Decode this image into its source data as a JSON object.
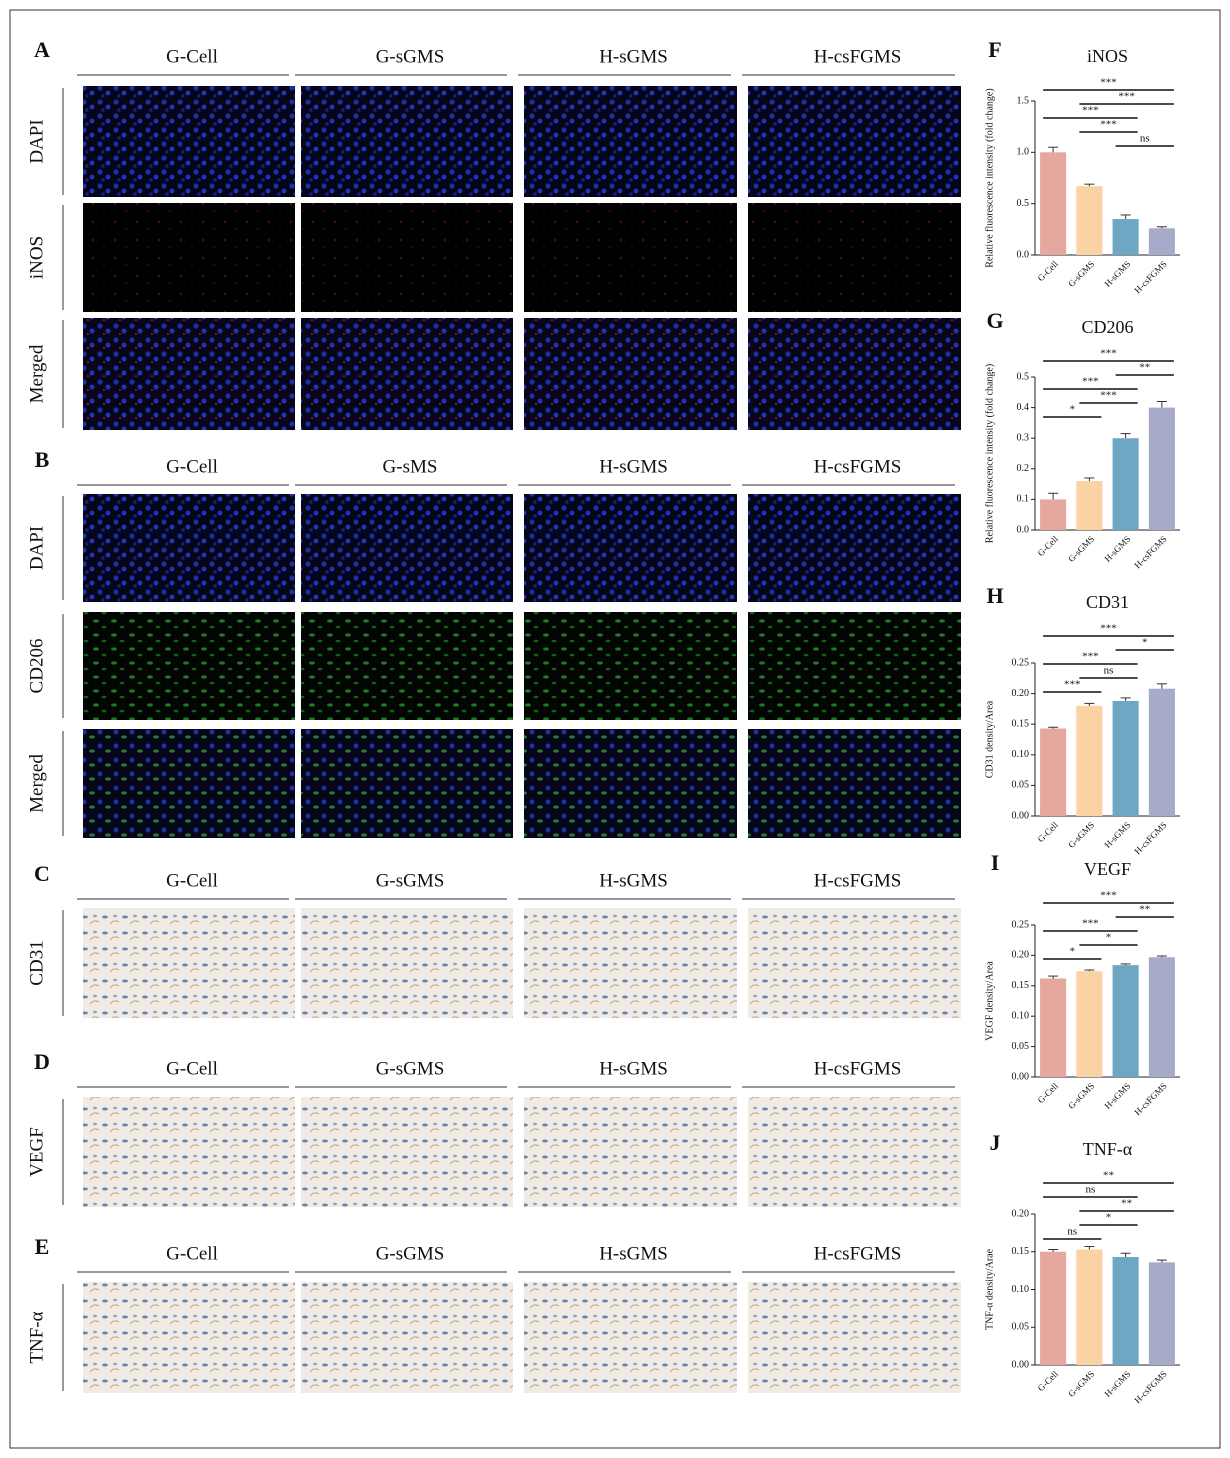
{
  "image_panels": [
    {
      "label": "A",
      "columns": [
        "G-Cell",
        "G-sGMS",
        "H-sGMS",
        "H-csFGMS"
      ],
      "rows": [
        "DAPI",
        "iNOS",
        "Merged"
      ]
    },
    {
      "label": "B",
      "columns": [
        "G-Cell",
        "G-sMS",
        "H-sGMS",
        "H-csFGMS"
      ],
      "rows": [
        "DAPI",
        "CD206",
        "Merged"
      ]
    },
    {
      "label": "C",
      "columns": [
        "G-Cell",
        "G-sGMS",
        "H-sGMS",
        "H-csFGMS"
      ],
      "rows": [
        "CD31"
      ]
    },
    {
      "label": "D",
      "columns": [
        "G-Cell",
        "G-sGMS",
        "H-sGMS",
        "H-csFGMS"
      ],
      "rows": [
        "VEGF"
      ]
    },
    {
      "label": "E",
      "columns": [
        "G-Cell",
        "G-sGMS",
        "H-sGMS",
        "H-csFGMS"
      ],
      "rows": [
        "TNF-α"
      ]
    }
  ],
  "chart_data": [
    {
      "type": "bar",
      "label": "F",
      "title": "iNOS",
      "y_label": "Relative fluorescence intensity (fold change)",
      "categories": [
        "G-Cell",
        "G-sGMS",
        "H-sGMS",
        "H-csFGMS"
      ],
      "values": [
        1.0,
        0.67,
        0.35,
        0.26
      ],
      "errors": [
        0.05,
        0.02,
        0.04,
        0.015
      ],
      "colors": [
        "#e4a89f",
        "#fbd2a3",
        "#6ea7c3",
        "#a8aac9"
      ],
      "ylim": [
        0,
        1.5
      ],
      "yticks": [
        {
          "value": 0,
          "label": "0.0"
        },
        0.5,
        {
          "value": 1,
          "label": "1.0"
        },
        1.5
      ],
      "annotations": [
        {
          "text": "***",
          "from": 0,
          "to": 3
        },
        {
          "text": "***",
          "from": 1,
          "to": 3
        },
        {
          "text": "***",
          "from": 0,
          "to": 2
        },
        {
          "text": "***",
          "from": 1,
          "to": 2
        },
        {
          "text": "ns",
          "from": 2,
          "to": 3
        }
      ]
    },
    {
      "type": "bar",
      "label": "G",
      "title": "CD206",
      "y_label": "Relative fluorescence intensity (fold change)",
      "categories": [
        "G-Cell",
        "G-sGMS",
        "H-sGMS",
        "H-csFGMS"
      ],
      "values": [
        0.1,
        0.16,
        0.3,
        0.4
      ],
      "errors": [
        0.02,
        0.01,
        0.015,
        0.02
      ],
      "colors": [
        "#e4a89f",
        "#fbd2a3",
        "#6ea7c3",
        "#a8aac9"
      ],
      "ylim": [
        0,
        0.5
      ],
      "yticks": [
        {
          "value": 0,
          "label": "0.0"
        },
        0.1,
        0.2,
        0.3,
        0.4,
        0.5
      ],
      "annotations": [
        {
          "text": "***",
          "from": 0,
          "to": 3
        },
        {
          "text": "**",
          "from": 2,
          "to": 3
        },
        {
          "text": "***",
          "from": 0,
          "to": 2
        },
        {
          "text": "***",
          "from": 1,
          "to": 2
        },
        {
          "text": "*",
          "from": 0,
          "to": 1
        }
      ]
    },
    {
      "type": "bar",
      "label": "H",
      "title": "CD31",
      "y_label": "CD31 density/Area",
      "categories": [
        "G-Cell",
        "G-sGMS",
        "H-sGMS",
        "H-csFGMS"
      ],
      "values": [
        0.143,
        0.18,
        0.188,
        0.208
      ],
      "errors": [
        0.002,
        0.004,
        0.005,
        0.008
      ],
      "colors": [
        "#e4a89f",
        "#fbd2a3",
        "#6ea7c3",
        "#a8aac9"
      ],
      "ylim": [
        0,
        0.25
      ],
      "yticks": [
        {
          "value": 0,
          "label": "0.00"
        },
        0.05,
        {
          "value": 0.1,
          "label": "0.10"
        },
        0.15,
        {
          "value": 0.2,
          "label": "0.20"
        },
        0.25
      ],
      "annotations": [
        {
          "text": "***",
          "from": 0,
          "to": 3
        },
        {
          "text": "*",
          "from": 2,
          "to": 3
        },
        {
          "text": "***",
          "from": 0,
          "to": 2
        },
        {
          "text": "ns",
          "from": 1,
          "to": 2
        },
        {
          "text": "***",
          "from": 0,
          "to": 1
        }
      ]
    },
    {
      "type": "bar",
      "label": "I",
      "title": "VEGF",
      "y_label": "VEGF density/Area",
      "categories": [
        "G-Cell",
        "G-sGMS",
        "H-sGMS",
        "H-csFGMS"
      ],
      "values": [
        0.162,
        0.174,
        0.184,
        0.197
      ],
      "errors": [
        0.004,
        0.002,
        0.002,
        0.002
      ],
      "colors": [
        "#e4a89f",
        "#fbd2a3",
        "#6ea7c3",
        "#a8aac9"
      ],
      "ylim": [
        0,
        0.25
      ],
      "yticks": [
        {
          "value": 0,
          "label": "0.00"
        },
        0.05,
        {
          "value": 0.1,
          "label": "0.10"
        },
        0.15,
        {
          "value": 0.2,
          "label": "0.20"
        },
        0.25
      ],
      "annotations": [
        {
          "text": "***",
          "from": 0,
          "to": 3
        },
        {
          "text": "**",
          "from": 2,
          "to": 3
        },
        {
          "text": "***",
          "from": 0,
          "to": 2
        },
        {
          "text": "*",
          "from": 1,
          "to": 2
        },
        {
          "text": "*",
          "from": 0,
          "to": 1
        }
      ]
    },
    {
      "type": "bar",
      "label": "J",
      "title": "TNF-α",
      "y_label": "TNF-α density/Arae",
      "categories": [
        "G-Cell",
        "G-sGMS",
        "H-sGMS",
        "H-csFGMS"
      ],
      "values": [
        0.15,
        0.153,
        0.143,
        0.136
      ],
      "errors": [
        0.003,
        0.004,
        0.005,
        0.003
      ],
      "colors": [
        "#e4a89f",
        "#fbd2a3",
        "#6ea7c3",
        "#a8aac9"
      ],
      "ylim": [
        0,
        0.2
      ],
      "yticks": [
        {
          "value": 0,
          "label": "0.00"
        },
        0.05,
        {
          "value": 0.1,
          "label": "0.10"
        },
        0.15,
        {
          "value": 0.2,
          "label": "0.20"
        }
      ],
      "annotations": [
        {
          "text": "**",
          "from": 0,
          "to": 3
        },
        {
          "text": "ns",
          "from": 0,
          "to": 2
        },
        {
          "text": "**",
          "from": 1,
          "to": 3
        },
        {
          "text": "*",
          "from": 1,
          "to": 2
        },
        {
          "text": "ns",
          "from": 0,
          "to": 1
        }
      ]
    }
  ]
}
